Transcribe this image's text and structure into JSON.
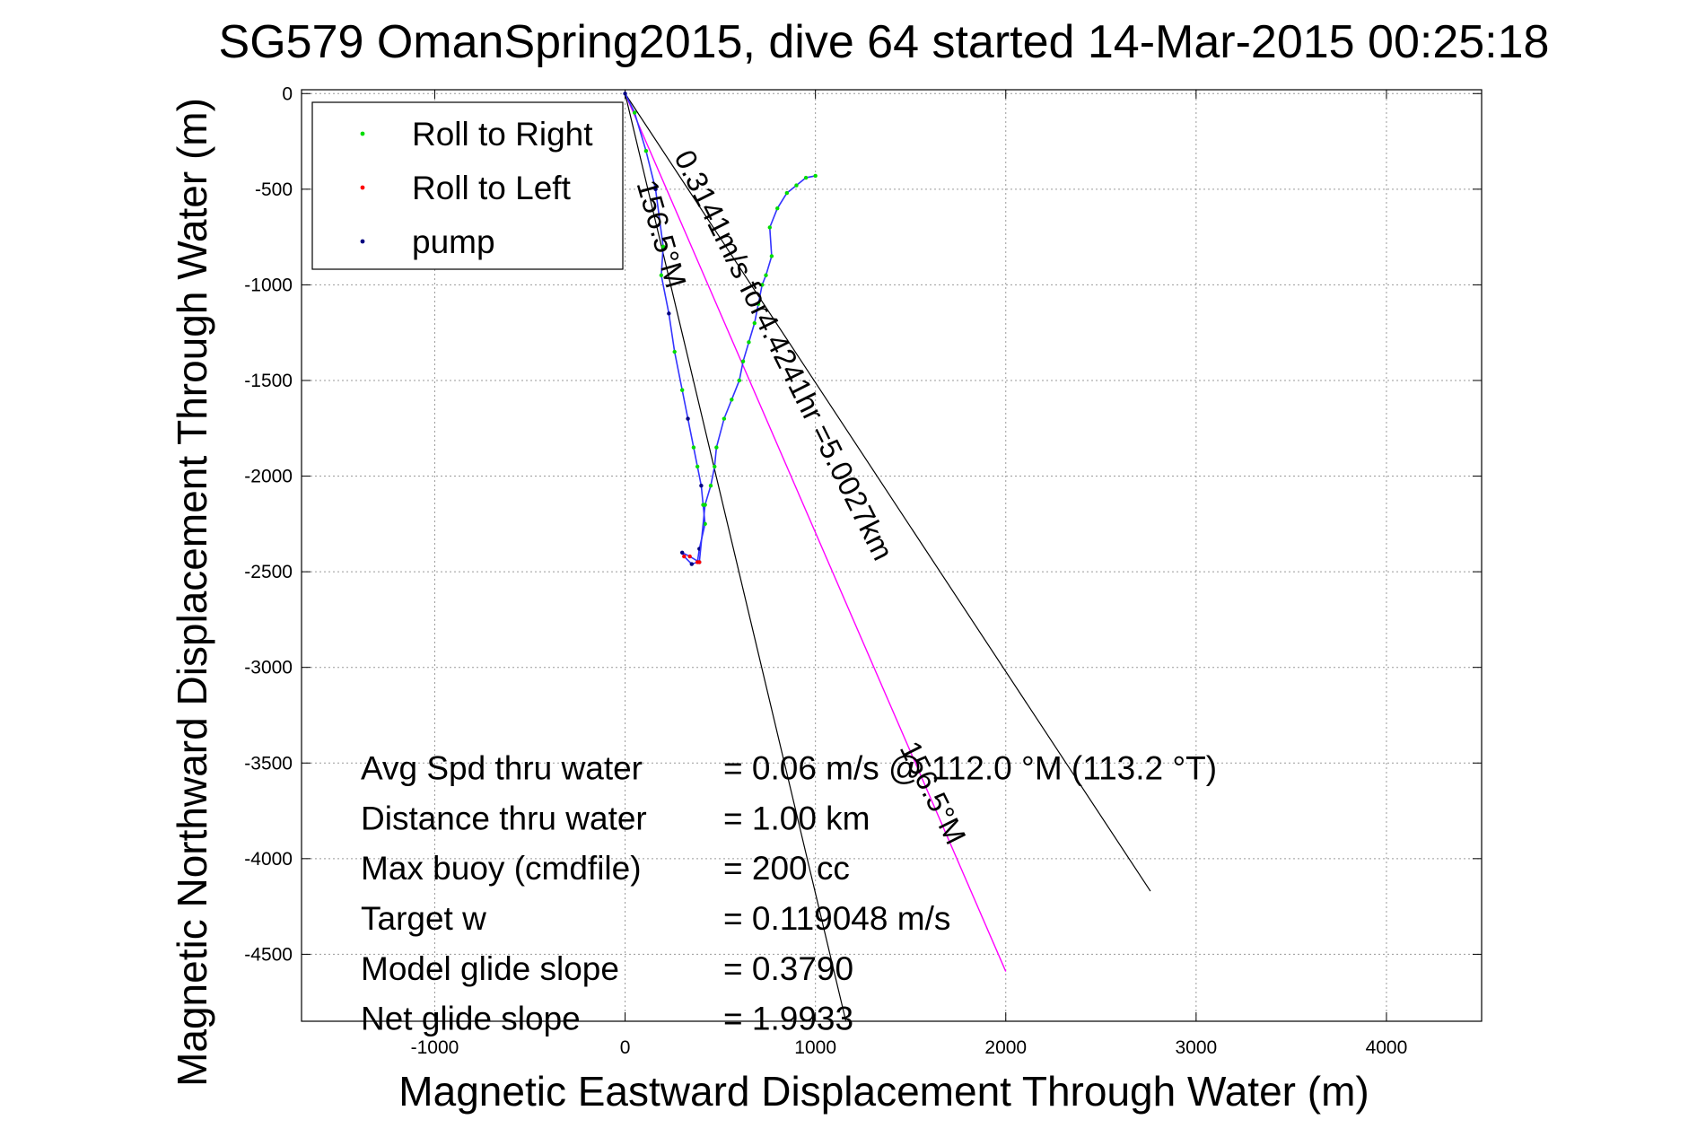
{
  "chart_data": {
    "type": "line",
    "title": "SG579 OmanSpring2015, dive 64 started 14-Mar-2015 00:25:18",
    "xlabel": "Magnetic Eastward Displacement Through Water (m)",
    "ylabel": "Magnetic Northward Displacement Through Water (m)",
    "xlim": [
      -1700,
      4500
    ],
    "ylim": [
      -4850,
      20
    ],
    "xticks": [
      -1000,
      0,
      1000,
      2000,
      3000,
      4000
    ],
    "yticks": [
      0,
      -500,
      -1000,
      -1500,
      -2000,
      -2500,
      -3000,
      -3500,
      -4000,
      -4500
    ],
    "grid": true,
    "legend_position": "top-left",
    "legend": [
      {
        "label": "Roll to Right",
        "color": "#00dd00"
      },
      {
        "label": "Roll to Left",
        "color": "#ff0000"
      },
      {
        "label": "pump",
        "color": "#000080"
      }
    ],
    "colors": {
      "track": "#3333ff",
      "roll_right": "#00dd00",
      "roll_left": "#ff0000",
      "pump": "#000080",
      "current_vector": "#ff00ff",
      "heading_line": "#000000"
    },
    "series": [
      {
        "role": "descent-track",
        "x": [
          0,
          50,
          110,
          160,
          200,
          190,
          230,
          260,
          300,
          330,
          360,
          380,
          400,
          410,
          420,
          390,
          380,
          350,
          310,
          300,
          340,
          390
        ],
        "y": [
          0,
          -100,
          -300,
          -500,
          -800,
          -950,
          -1150,
          -1350,
          -1550,
          -1700,
          -1850,
          -1950,
          -2050,
          -2150,
          -2250,
          -2380,
          -2450,
          -2460,
          -2420,
          -2400,
          -2420,
          -2450
        ]
      },
      {
        "role": "ascent-track",
        "x": [
          390,
          420,
          450,
          470,
          480,
          520,
          560,
          600,
          620,
          650,
          680,
          700,
          720,
          740,
          770,
          760,
          800,
          850,
          900,
          950,
          1000
        ],
        "y": [
          -2450,
          -2150,
          -2050,
          -1950,
          -1850,
          -1700,
          -1600,
          -1500,
          -1400,
          -1300,
          -1200,
          -1100,
          -1000,
          -950,
          -850,
          -700,
          -600,
          -520,
          -480,
          -440,
          -430
        ]
      },
      {
        "role": "current-vector",
        "x": [
          0,
          2000
        ],
        "y": [
          0,
          -4590
        ]
      },
      {
        "role": "heading-lines",
        "lines": [
          {
            "x": [
              0,
              1160
            ],
            "y": [
              0,
              -4850
            ]
          },
          {
            "x": [
              0,
              2760
            ],
            "y": [
              0,
              -4170
            ]
          }
        ]
      }
    ],
    "annotations": {
      "current_label": "0.3141m/s for4.4241hr =5.0027km",
      "heading_label_1": "156.5°M",
      "heading_label_2": "156.5°M",
      "summary_rows": [
        {
          "label": "Avg Spd thru water",
          "value": "=  0.06 m/s @ 112.0 °M (113.2 °T)"
        },
        {
          "label": "Distance thru water",
          "value": "=  1.00 km"
        },
        {
          "label": "Max buoy (cmdfile)",
          "value": "= 200 cc"
        },
        {
          "label": "Target w",
          "value": "= 0.119048 m/s"
        },
        {
          "label": "Model glide slope",
          "value": "= 0.3790"
        },
        {
          "label": "Net glide slope",
          "value": "= 1.9933"
        }
      ]
    }
  }
}
